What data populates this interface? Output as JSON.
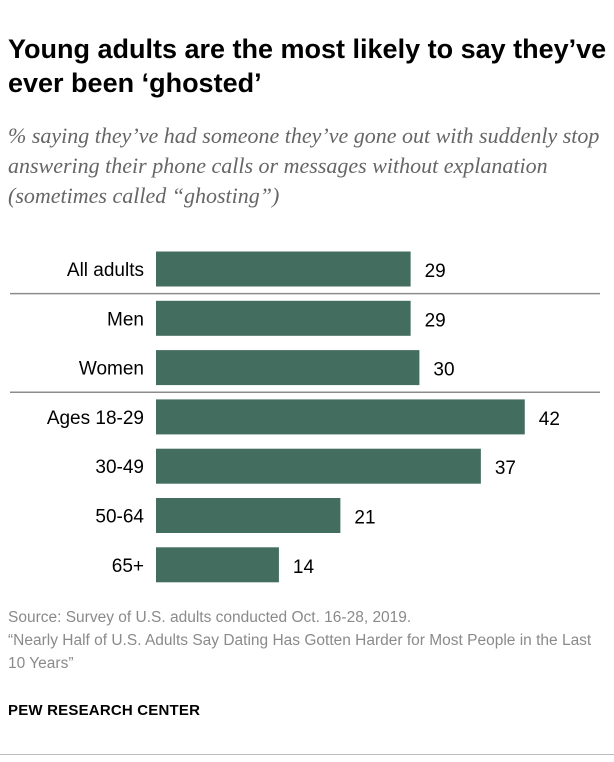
{
  "chart_data": {
    "type": "bar",
    "orientation": "horizontal",
    "title": "Young adults are the most likely to say they’ve ever been ‘ghosted’",
    "subtitle": "% saying they’ve had someone they’ve gone out with suddenly stop answering their phone calls or messages without explanation (sometimes called “ghosting”)",
    "categories": [
      "All adults",
      "Men",
      "Women",
      "Ages 18-29",
      "30-49",
      "50-64",
      "65+"
    ],
    "values": [
      29,
      29,
      30,
      42,
      37,
      21,
      14
    ],
    "groups": [
      [
        "All adults"
      ],
      [
        "Men",
        "Women"
      ],
      [
        "Ages 18-29",
        "30-49",
        "50-64",
        "65+"
      ]
    ],
    "xlabel": "",
    "ylabel": "",
    "xlim": [
      0,
      50
    ],
    "grid": false,
    "data_labels": true,
    "bar_color": "#436e5f"
  },
  "source": {
    "line1": "Source: Survey of U.S. adults conducted Oct. 16-28, 2019.",
    "line2": "“Nearly Half of U.S. Adults Say Dating Has Gotten Harder for Most People in the Last 10 Years”"
  },
  "brand": "PEW RESEARCH CENTER",
  "colors": {
    "bar": "#436e5f",
    "divider": "#8c8c8c",
    "text": "#000000",
    "subtitle": "#666666",
    "source": "#8a8a8a"
  }
}
